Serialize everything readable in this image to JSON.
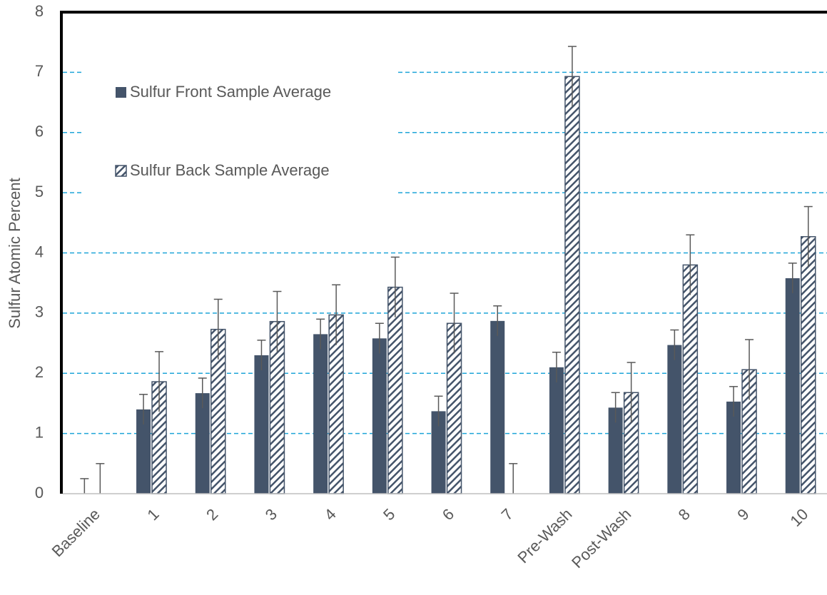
{
  "chart_data": {
    "type": "bar",
    "y_label": "Sulfur Atomic Percent",
    "categories": [
      "Baseline",
      "1",
      "2",
      "3",
      "4",
      "5",
      "6",
      "7",
      "Pre-Wash",
      "Post-Wash",
      "8",
      "9",
      "10"
    ],
    "series": [
      {
        "name": "Sulfur Front Sample Average",
        "color": "#44546a",
        "hatch": false,
        "values": [
          0,
          1.4,
          1.67,
          2.3,
          2.65,
          2.58,
          1.37,
          2.87,
          2.1,
          1.43,
          2.47,
          1.53,
          3.58
        ],
        "errors": [
          0.25,
          0.25,
          0.25,
          0.25,
          0.25,
          0.25,
          0.25,
          0.25,
          0.25,
          0.25,
          0.25,
          0.25,
          0.25
        ]
      },
      {
        "name": "Sulfur Back Sample Average",
        "color": "#44546a",
        "hatch": true,
        "values": [
          0,
          1.86,
          2.73,
          2.86,
          2.97,
          3.43,
          2.83,
          0,
          6.93,
          1.68,
          3.8,
          2.06,
          4.27
        ],
        "errors": [
          0.5,
          0.5,
          0.5,
          0.5,
          0.5,
          0.5,
          0.5,
          0.5,
          0.5,
          0.5,
          0.5,
          0.5,
          0.5
        ]
      }
    ],
    "ylim": [
      0,
      8
    ],
    "yticks": [
      0,
      1,
      2,
      3,
      4,
      5,
      6,
      7,
      8
    ],
    "grid": true,
    "grid_color": "#1fa5d8",
    "legend": "upper left"
  }
}
